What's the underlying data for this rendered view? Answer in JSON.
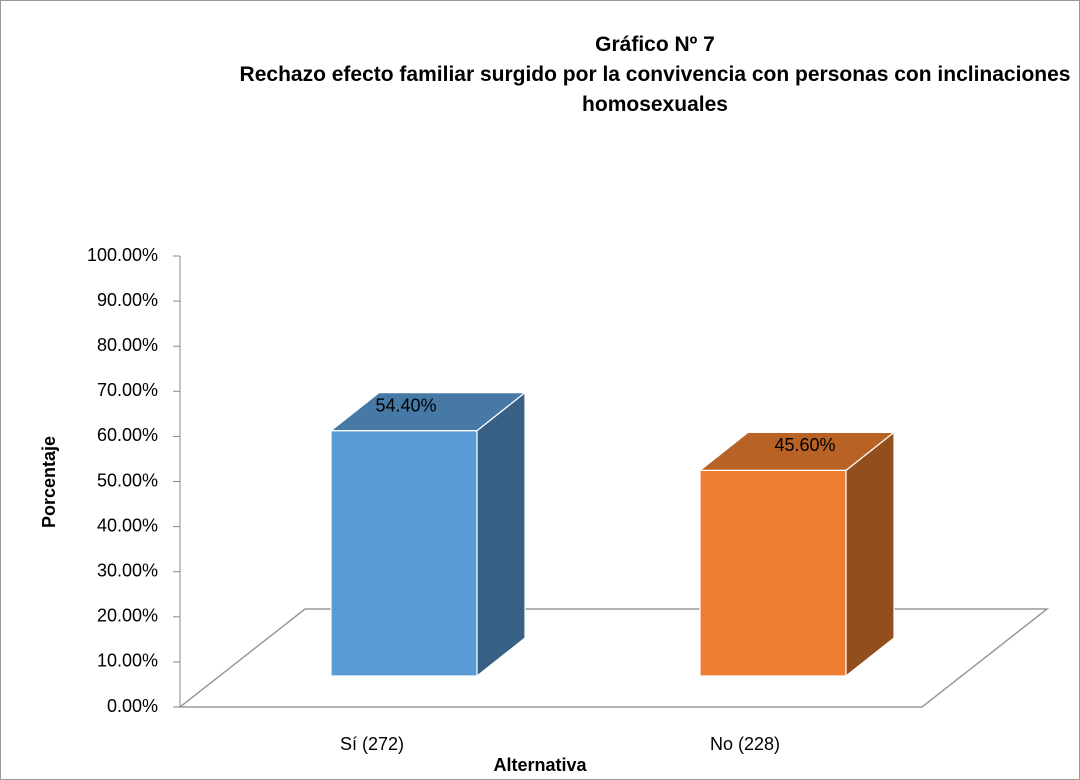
{
  "chart_data": {
    "type": "bar3d",
    "title": "Gráfico Nº 7",
    "subtitle": "Rechazo  efecto  familiar surgido por la convivencia con personas con inclinaciones homosexuales",
    "x_label": "Alternativa",
    "y_label": "Porcentaje",
    "categories": [
      "Sí  (272)",
      "No (228)"
    ],
    "values": [
      54.4,
      45.6
    ],
    "value_labels": [
      "54.40%",
      "45.60%"
    ],
    "colors": [
      "#5b9bd5",
      "#ed7d31"
    ],
    "ylim": [
      0,
      100
    ],
    "yticks": [
      {
        "value": 0,
        "label": "0.00%"
      },
      {
        "value": 10,
        "label": "10.00%"
      },
      {
        "value": 20,
        "label": "20.00%"
      },
      {
        "value": 30,
        "label": "30.00%"
      },
      {
        "value": 40,
        "label": "40.00%"
      },
      {
        "value": 50,
        "label": "50.00%"
      },
      {
        "value": 60,
        "label": "60.00%"
      },
      {
        "value": 70,
        "label": "70.00%"
      },
      {
        "value": 80,
        "label": "80.00%"
      },
      {
        "value": 90,
        "label": "90.00%"
      },
      {
        "value": 100,
        "label": "100.00%"
      }
    ],
    "grid": false
  }
}
